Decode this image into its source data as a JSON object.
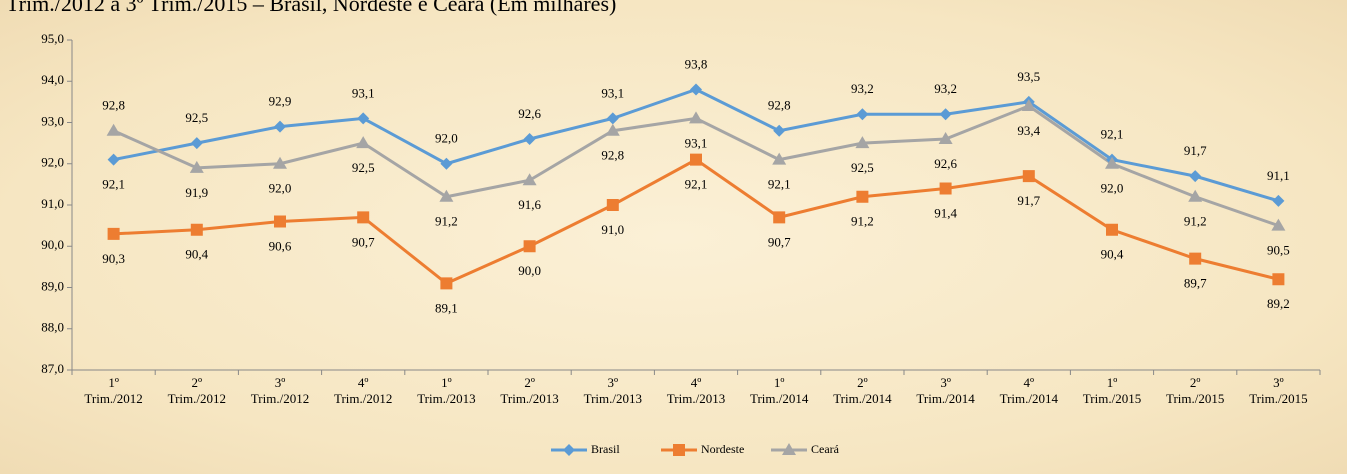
{
  "chart_data": {
    "type": "line",
    "title": "Trim./2012 a 3º Trim./2015 – Brasil, Nordeste e Ceará (Em milhares)",
    "categories": [
      [
        "1º",
        "Trim./2012"
      ],
      [
        "2º",
        "Trim./2012"
      ],
      [
        "3º",
        "Trim./2012"
      ],
      [
        "4º",
        "Trim./2012"
      ],
      [
        "1º",
        "Trim./2013"
      ],
      [
        "2º",
        "Trim./2013"
      ],
      [
        "3º",
        "Trim./2013"
      ],
      [
        "4º",
        "Trim./2013"
      ],
      [
        "1º",
        "Trim./2014"
      ],
      [
        "2º",
        "Trim./2014"
      ],
      [
        "3º",
        "Trim./2014"
      ],
      [
        "4º",
        "Trim./2014"
      ],
      [
        "1º",
        "Trim./2015"
      ],
      [
        "2º",
        "Trim./2015"
      ],
      [
        "3º",
        "Trim./2015"
      ]
    ],
    "series": [
      {
        "name": "Brasil",
        "color": "#5b9bd5",
        "marker": "diamond",
        "values": [
          92.1,
          92.5,
          92.9,
          93.1,
          92.0,
          92.6,
          93.1,
          93.8,
          92.8,
          93.2,
          93.2,
          93.5,
          92.1,
          91.7,
          91.1
        ],
        "value_labels": [
          "92,1",
          "92,5",
          "92,9",
          "93,1",
          "92,0",
          "92,6",
          "93,1",
          "93,8",
          "92,8",
          "93,2",
          "93,2",
          "93,5",
          "92,1",
          "91,7",
          "91,1"
        ]
      },
      {
        "name": "Nordeste",
        "color": "#ed7d31",
        "marker": "square",
        "values": [
          90.3,
          90.4,
          90.6,
          90.7,
          89.1,
          90.0,
          91.0,
          92.1,
          90.7,
          91.2,
          91.4,
          91.7,
          90.4,
          89.7,
          89.2
        ],
        "value_labels": [
          "90,3",
          "90,4",
          "90,6",
          "90,7",
          "89,1",
          "90,0",
          "91,0",
          "92,1",
          "90,7",
          "91,2",
          "91,4",
          "91,7",
          "90,4",
          "89,7",
          "89,2"
        ]
      },
      {
        "name": "Ceará",
        "color": "#a5a5a5",
        "marker": "triangle",
        "values": [
          92.8,
          91.9,
          92.0,
          92.5,
          91.2,
          91.6,
          92.8,
          93.1,
          92.1,
          92.5,
          92.6,
          93.4,
          92.0,
          91.2,
          90.5
        ],
        "value_labels": [
          "92,8",
          "91,9",
          "92,0",
          "92,5",
          "91,2",
          "91,6",
          "92,8",
          "93,1",
          "92,1",
          "92,5",
          "92,6",
          "93,4",
          "92,0",
          "91,2",
          "90,5"
        ]
      }
    ],
    "ylim": [
      87,
      95
    ],
    "yticks": [
      {
        "value": 87,
        "label": "87,0"
      },
      {
        "value": 88,
        "label": "88,0"
      },
      {
        "value": 89,
        "label": "89,0"
      },
      {
        "value": 90,
        "label": "90,0"
      },
      {
        "value": 91,
        "label": "91,0"
      },
      {
        "value": 92,
        "label": "92,0"
      },
      {
        "value": 93,
        "label": "93,0"
      },
      {
        "value": 94,
        "label": "94,0"
      },
      {
        "value": 95,
        "label": "95,0"
      }
    ],
    "legend": "bottom"
  }
}
